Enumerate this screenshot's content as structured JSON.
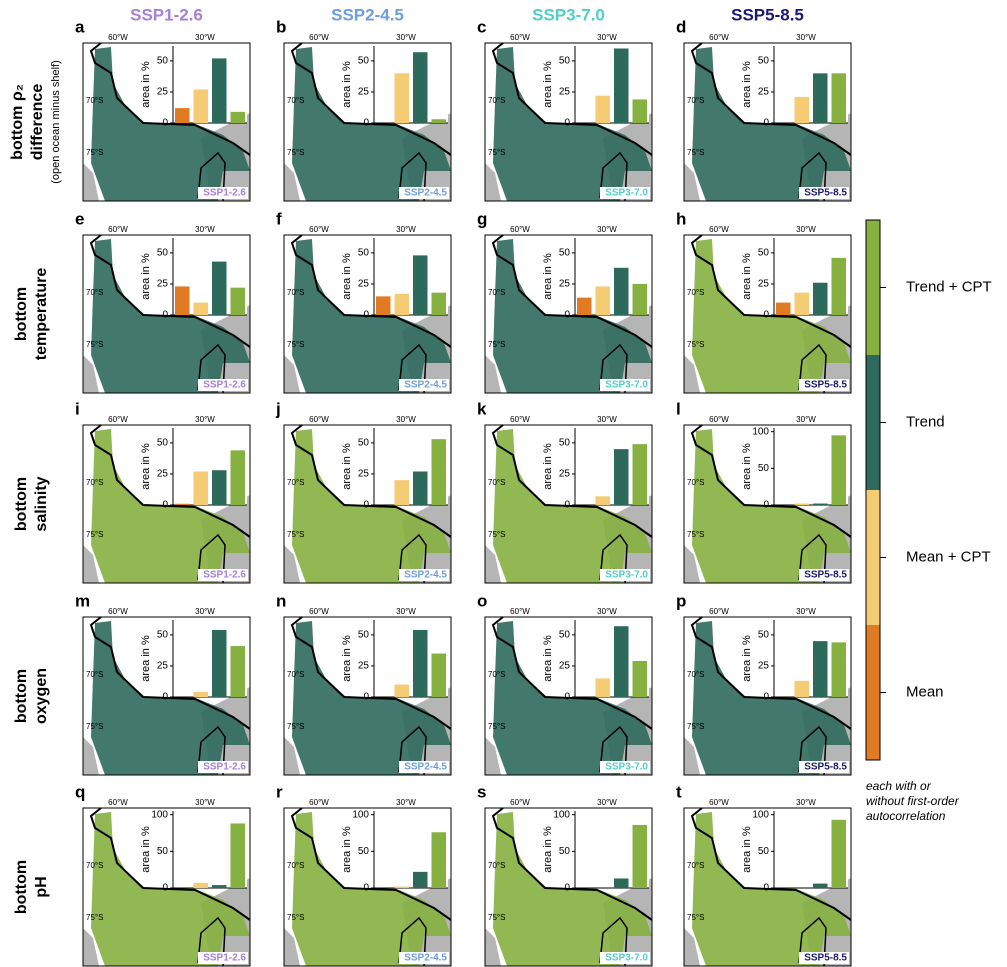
{
  "columns": [
    "SSP1-2.6",
    "SSP2-4.5",
    "SSP3-7.0",
    "SSP5-8.5"
  ],
  "column_colors": [
    "#a67fdc",
    "#6d9ce0",
    "#4fcfca",
    "#191970"
  ],
  "rows": [
    {
      "label": [
        "bottom ρ₂",
        "difference"
      ],
      "note": "(open ocean minus shelf)"
    },
    {
      "label": [
        "bottom",
        "temperature"
      ]
    },
    {
      "label": [
        "bottom",
        "salinity"
      ]
    },
    {
      "label": [
        "bottom",
        "oxygen"
      ]
    },
    {
      "label": [
        "bottom",
        "pH"
      ]
    }
  ],
  "map_labels": {
    "lon": [
      "60°W",
      "30°W"
    ],
    "lat": [
      "70°S",
      "75°S"
    ]
  },
  "legend": {
    "items": [
      {
        "name": "Mean",
        "color": "#e07b24"
      },
      {
        "name": "Mean + CPT",
        "color": "#f5cb73"
      },
      {
        "name": "Trend",
        "color": "#2e6a5c"
      },
      {
        "name": "Trend + CPT",
        "color": "#86b040"
      }
    ],
    "note": [
      "each with or",
      "without first-order",
      "autocorrelation"
    ]
  },
  "chart_data": [
    {
      "type": "bar",
      "panel": "a",
      "ylabel": "area in %",
      "values": [
        12,
        27,
        52,
        9
      ],
      "ylim": [
        0,
        62
      ],
      "yticks": [
        0,
        25,
        50
      ]
    },
    {
      "type": "bar",
      "panel": "b",
      "ylabel": "area in %",
      "values": [
        0,
        40,
        57,
        3
      ],
      "ylim": [
        0,
        62
      ],
      "yticks": [
        0,
        25,
        50
      ]
    },
    {
      "type": "bar",
      "panel": "c",
      "ylabel": "area in %",
      "values": [
        0,
        22,
        60,
        19
      ],
      "ylim": [
        0,
        62
      ],
      "yticks": [
        0,
        25,
        50
      ]
    },
    {
      "type": "bar",
      "panel": "d",
      "ylabel": "area in %",
      "values": [
        0,
        21,
        40,
        40
      ],
      "ylim": [
        0,
        62
      ],
      "yticks": [
        0,
        25,
        50
      ]
    },
    {
      "type": "bar",
      "panel": "e",
      "ylabel": "area in %",
      "values": [
        23,
        10,
        43,
        22
      ],
      "ylim": [
        0,
        62
      ],
      "yticks": [
        0,
        25,
        50
      ]
    },
    {
      "type": "bar",
      "panel": "f",
      "ylabel": "area in %",
      "values": [
        15,
        17,
        48,
        18
      ],
      "ylim": [
        0,
        62
      ],
      "yticks": [
        0,
        25,
        50
      ]
    },
    {
      "type": "bar",
      "panel": "g",
      "ylabel": "area in %",
      "values": [
        14,
        23,
        38,
        25
      ],
      "ylim": [
        0,
        62
      ],
      "yticks": [
        0,
        25,
        50
      ]
    },
    {
      "type": "bar",
      "panel": "h",
      "ylabel": "area in %",
      "values": [
        10,
        18,
        26,
        46
      ],
      "ylim": [
        0,
        62
      ],
      "yticks": [
        0,
        25,
        50
      ]
    },
    {
      "type": "bar",
      "panel": "i",
      "ylabel": "area in %",
      "values": [
        1,
        27,
        28,
        44
      ],
      "ylim": [
        0,
        62
      ],
      "yticks": [
        0,
        25,
        50
      ]
    },
    {
      "type": "bar",
      "panel": "j",
      "ylabel": "area in %",
      "values": [
        0,
        20,
        27,
        53
      ],
      "ylim": [
        0,
        62
      ],
      "yticks": [
        0,
        25,
        50
      ]
    },
    {
      "type": "bar",
      "panel": "k",
      "ylabel": "area in %",
      "values": [
        0,
        7,
        45,
        49
      ],
      "ylim": [
        0,
        62
      ],
      "yticks": [
        0,
        25,
        50
      ]
    },
    {
      "type": "bar",
      "panel": "l",
      "ylabel": "area in %",
      "values": [
        0,
        2,
        2,
        95
      ],
      "ylim": [
        0,
        105
      ],
      "yticks": [
        0,
        50,
        100
      ]
    },
    {
      "type": "bar",
      "panel": "m",
      "ylabel": "area in %",
      "values": [
        0,
        4,
        54,
        41
      ],
      "ylim": [
        0,
        62
      ],
      "yticks": [
        0,
        25,
        50
      ]
    },
    {
      "type": "bar",
      "panel": "n",
      "ylabel": "area in %",
      "values": [
        0,
        10,
        54,
        35
      ],
      "ylim": [
        0,
        62
      ],
      "yticks": [
        0,
        25,
        50
      ]
    },
    {
      "type": "bar",
      "panel": "o",
      "ylabel": "area in %",
      "values": [
        0,
        15,
        57,
        29
      ],
      "ylim": [
        0,
        62
      ],
      "yticks": [
        0,
        25,
        50
      ]
    },
    {
      "type": "bar",
      "panel": "p",
      "ylabel": "area in %",
      "values": [
        0,
        13,
        45,
        44
      ],
      "ylim": [
        0,
        62
      ],
      "yticks": [
        0,
        25,
        50
      ]
    },
    {
      "type": "bar",
      "panel": "q",
      "ylabel": "area in %",
      "values": [
        0,
        7,
        4,
        88
      ],
      "ylim": [
        0,
        105
      ],
      "yticks": [
        0,
        50,
        100
      ]
    },
    {
      "type": "bar",
      "panel": "r",
      "ylabel": "area in %",
      "values": [
        0,
        2,
        22,
        76
      ],
      "ylim": [
        0,
        105
      ],
      "yticks": [
        0,
        50,
        100
      ]
    },
    {
      "type": "bar",
      "panel": "s",
      "ylabel": "area in %",
      "values": [
        0,
        0,
        13,
        86
      ],
      "ylim": [
        0,
        105
      ],
      "yticks": [
        0,
        50,
        100
      ]
    },
    {
      "type": "bar",
      "panel": "t",
      "ylabel": "area in %",
      "values": [
        0,
        0,
        6,
        93
      ],
      "ylim": [
        0,
        105
      ],
      "yticks": [
        0,
        50,
        100
      ]
    }
  ]
}
